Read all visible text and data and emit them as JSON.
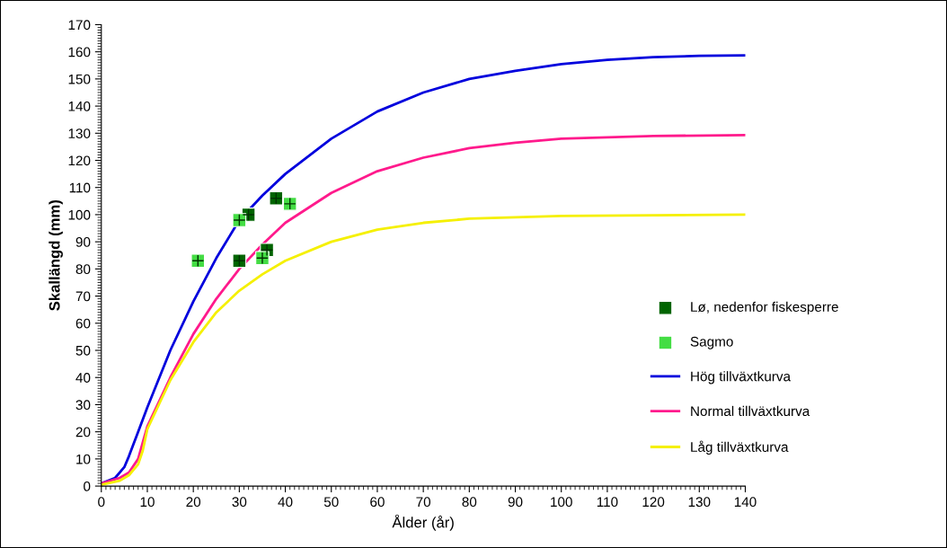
{
  "chart_data": {
    "type": "scatter",
    "xlabel": "Ålder (år)",
    "ylabel": "Skallängd (mm)",
    "xlim": [
      0,
      140
    ],
    "ylim": [
      0,
      170
    ],
    "xticks": [
      0,
      10,
      20,
      30,
      40,
      50,
      60,
      70,
      80,
      90,
      100,
      110,
      120,
      130,
      140
    ],
    "yticks": [
      0,
      10,
      20,
      30,
      40,
      50,
      60,
      70,
      80,
      90,
      100,
      110,
      120,
      130,
      140,
      150,
      160,
      170
    ],
    "grid": false,
    "legend": "right",
    "marker": "square",
    "series": [
      {
        "name": "Lø, nedenfor fiskesperre",
        "color": "#006400",
        "x": [
          30,
          32,
          38,
          36
        ],
        "values": [
          83,
          100,
          106,
          87
        ]
      },
      {
        "name": "Sagmo",
        "color": "#44dd44",
        "x": [
          21,
          30,
          41,
          35
        ],
        "values": [
          83,
          98,
          104,
          84
        ]
      },
      {
        "name": "Hög tillväxtkurva",
        "type": "line",
        "marker": "none",
        "color": "#0000dd",
        "x": [
          0,
          3,
          5,
          6,
          8,
          10,
          15,
          20,
          25,
          30,
          35,
          40,
          50,
          60,
          70,
          80,
          90,
          100,
          110,
          120,
          130,
          140
        ],
        "values": [
          1,
          3,
          7,
          11,
          20,
          29,
          50,
          68,
          84,
          98,
          107,
          115,
          128,
          138,
          145,
          150,
          153,
          155.5,
          157,
          158,
          158.5,
          158.7
        ]
      },
      {
        "name": "Normal tillväxtkurva",
        "type": "line",
        "marker": "none",
        "color": "#ff1a8c",
        "x": [
          0,
          4,
          6,
          8,
          9,
          10,
          15,
          20,
          25,
          30,
          35,
          40,
          50,
          60,
          70,
          80,
          90,
          100,
          120,
          140
        ],
        "values": [
          1,
          3,
          5,
          10,
          16,
          22,
          40,
          56,
          69,
          80,
          89,
          97,
          108,
          116,
          121,
          124.5,
          126.5,
          128,
          129,
          129.3
        ]
      },
      {
        "name": "Låg tillväxtkurva",
        "type": "line",
        "marker": "none",
        "color": "#f5f000",
        "x": [
          0,
          4,
          6,
          8,
          9,
          10,
          15,
          20,
          25,
          30,
          35,
          40,
          50,
          60,
          70,
          80,
          100,
          140
        ],
        "values": [
          0.5,
          2,
          4,
          8,
          13,
          21,
          39,
          53,
          64,
          72,
          78,
          83,
          90,
          94.5,
          97,
          98.5,
          99.5,
          100
        ]
      }
    ]
  }
}
